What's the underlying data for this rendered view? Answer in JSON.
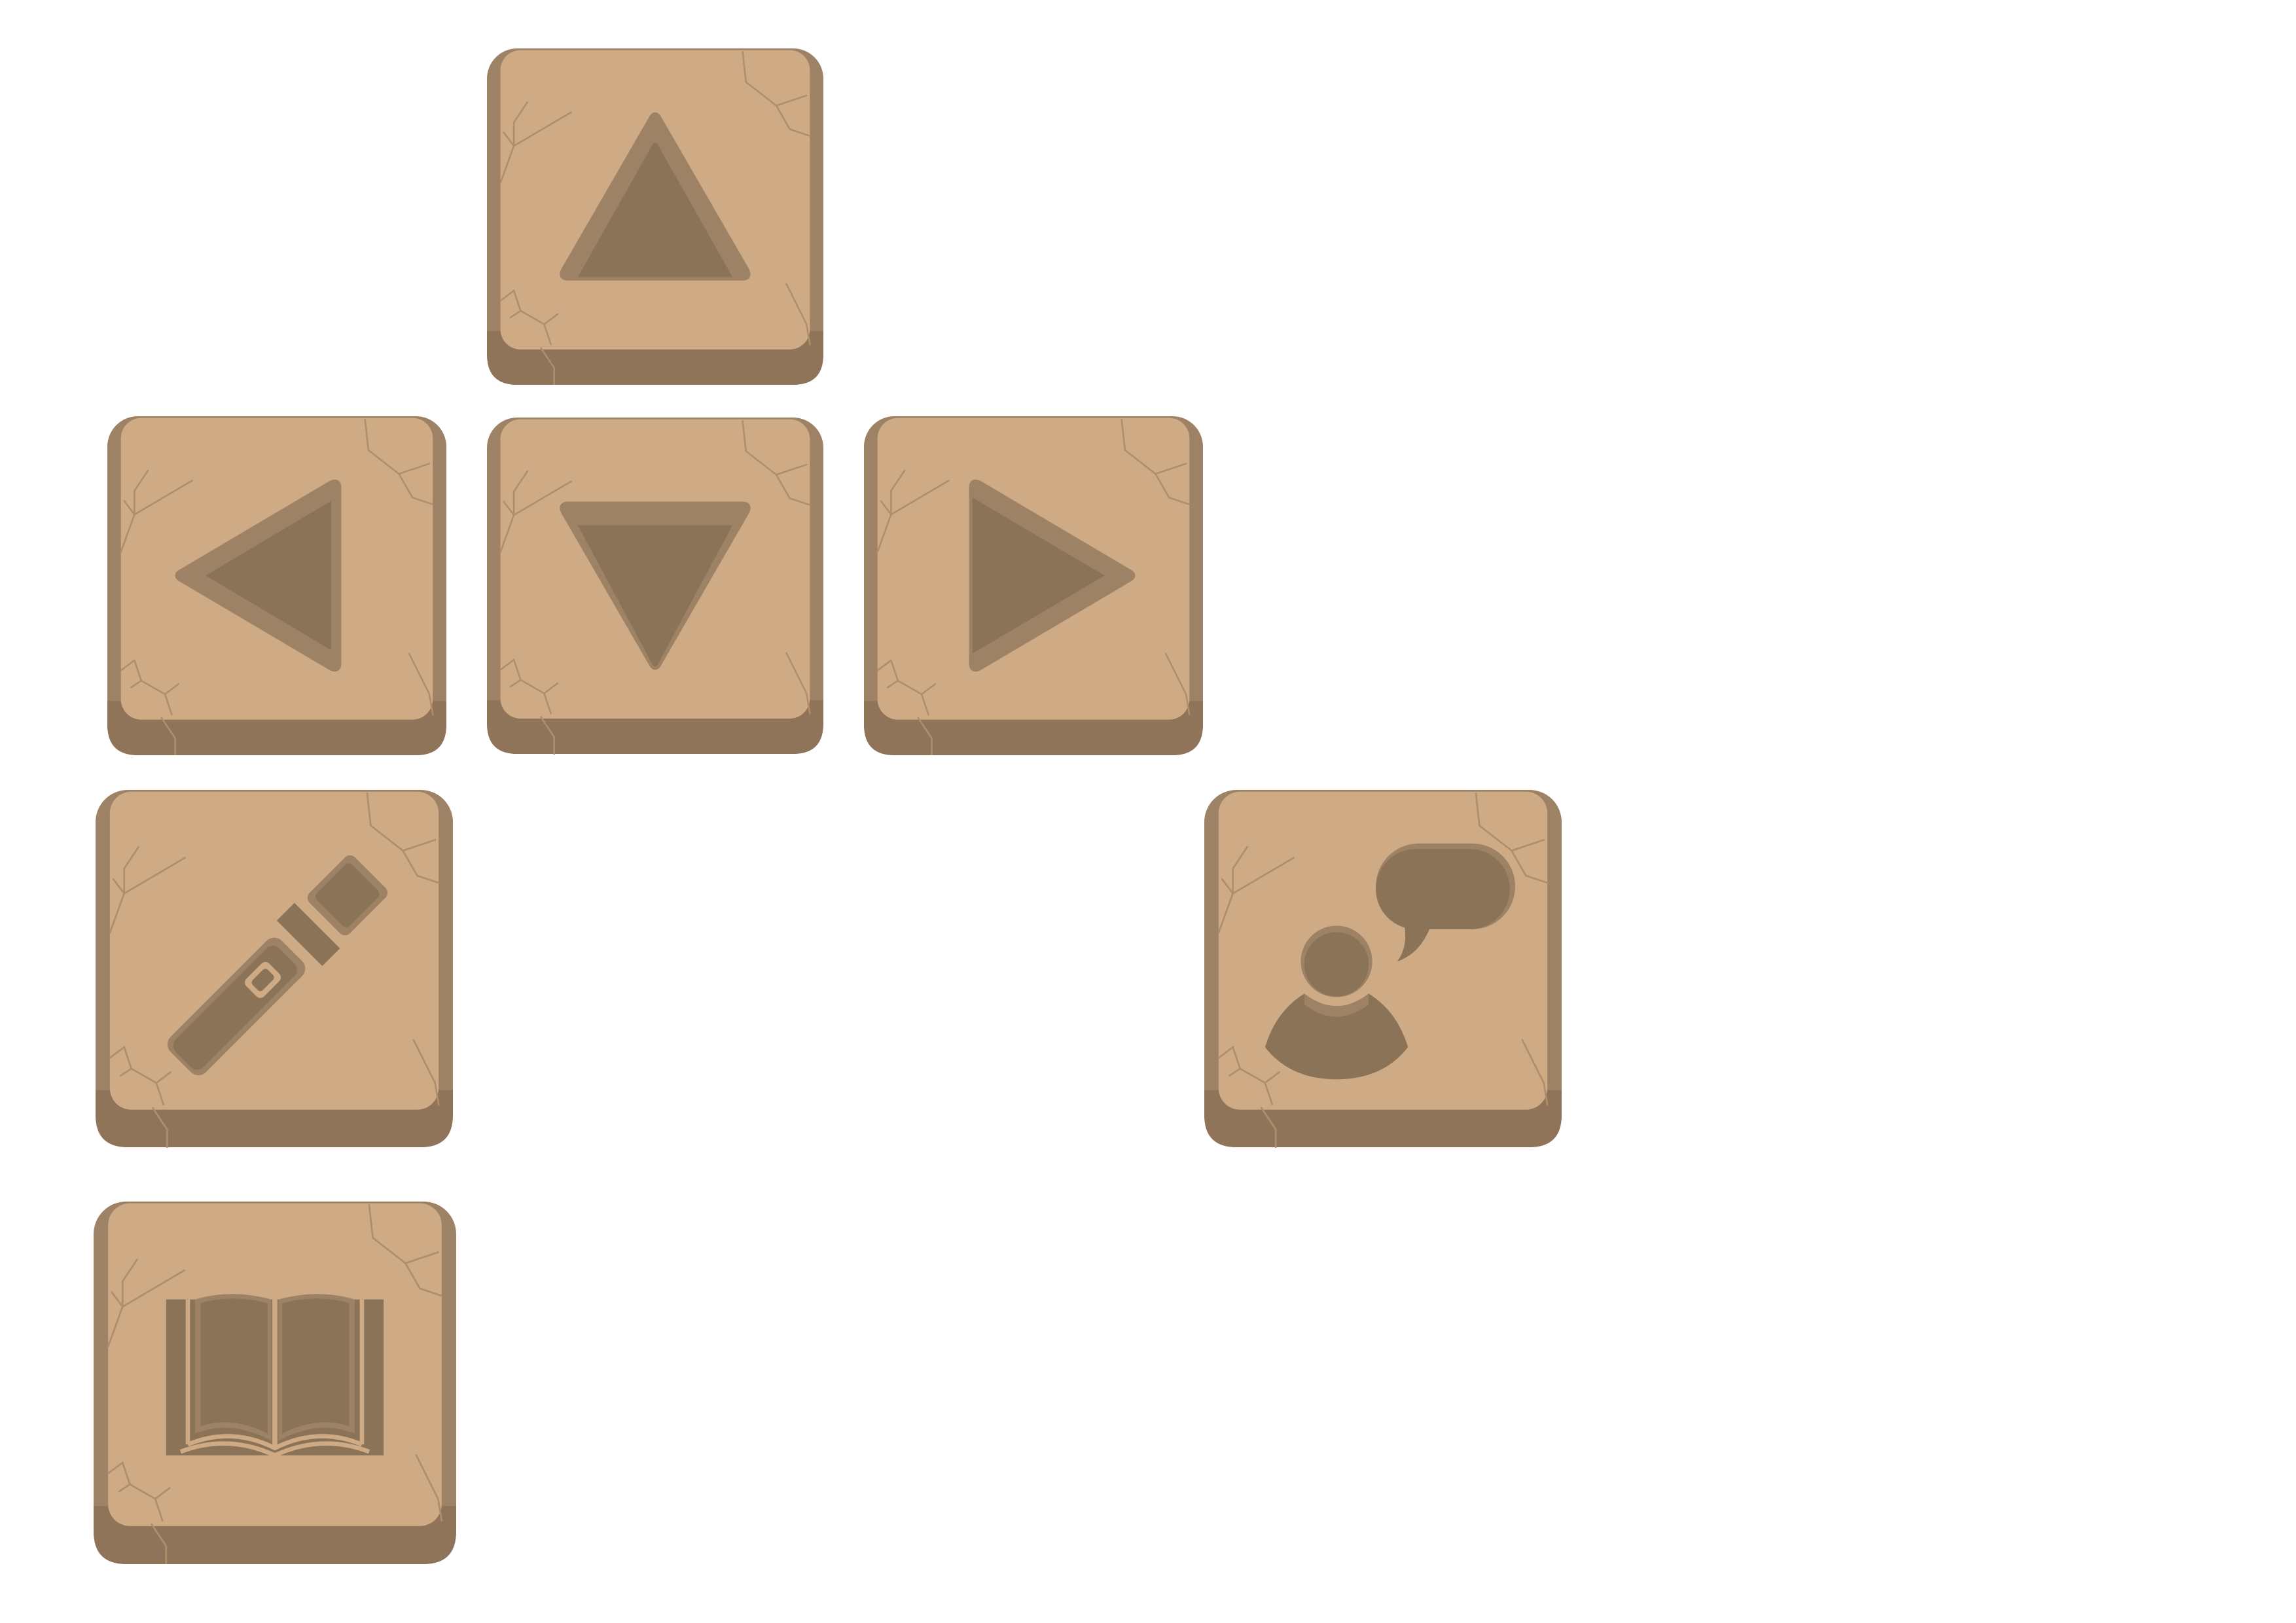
{
  "colors": {
    "background": "#ffffff",
    "tile_face": "#cfab85",
    "tile_edge": "#9e8265",
    "tile_shadow": "#8f7459",
    "crack": "#b08e6c",
    "glyph": "#8b7358",
    "glyph_rim": "#9e8265",
    "glyph_highlight": "#cfab85"
  },
  "tiles": [
    {
      "id": "up",
      "icon": "arrow-up-icon"
    },
    {
      "id": "left",
      "icon": "arrow-left-icon"
    },
    {
      "id": "down",
      "icon": "arrow-down-icon"
    },
    {
      "id": "right",
      "icon": "arrow-right-icon"
    },
    {
      "id": "torch",
      "icon": "flashlight-icon"
    },
    {
      "id": "talk",
      "icon": "person-speech-bubble-icon"
    },
    {
      "id": "book",
      "icon": "open-book-icon"
    }
  ]
}
